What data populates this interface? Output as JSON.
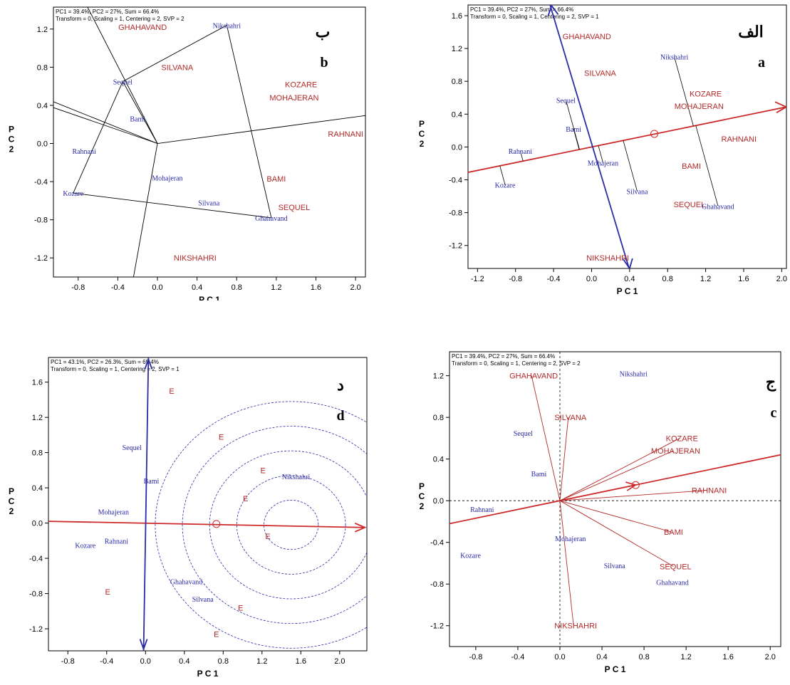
{
  "chart_data": [
    {
      "type": "scatter",
      "panel_label_ar": "ب",
      "panel_label_en": "b",
      "header_line1": "PC1 = 39.4%, PC2 = 27%, Sum = 66.4%",
      "header_line2": "Transform = 0, Scaling = 1, Centering = 2, SVP = 2",
      "xlabel": "P C 1",
      "ylabel": [
        "P",
        "C",
        "2"
      ],
      "xlim": [
        -1.05,
        2.1
      ],
      "ylim": [
        -1.4,
        1.43
      ],
      "xticks": [
        -0.8,
        -0.4,
        0.0,
        0.4,
        0.8,
        1.2,
        1.6,
        2.0
      ],
      "yticks": [
        -1.2,
        -0.8,
        -0.4,
        0.0,
        0.4,
        0.8,
        1.2
      ],
      "environments": [
        {
          "label": "GHAHAVAND",
          "x": -0.15,
          "y": 1.22
        },
        {
          "label": "SILVANA",
          "x": 0.2,
          "y": 0.8
        },
        {
          "label": "KOZARE",
          "x": 1.45,
          "y": 0.62
        },
        {
          "label": "MOHAJERAN",
          "x": 1.38,
          "y": 0.48
        },
        {
          "label": "RAHNANI",
          "x": 1.9,
          "y": 0.1
        },
        {
          "label": "BAMI",
          "x": 1.2,
          "y": -0.37
        },
        {
          "label": "SEQUEL",
          "x": 1.38,
          "y": -0.67
        },
        {
          "label": "NIKSHAHRI",
          "x": 0.38,
          "y": -1.2
        }
      ],
      "genotypes": [
        {
          "label": "Nikshahri",
          "x": 0.7,
          "y": 1.24
        },
        {
          "label": "Sequel",
          "x": -0.35,
          "y": 0.65
        },
        {
          "label": "Bami",
          "x": -0.2,
          "y": 0.26
        },
        {
          "label": "Rahnani",
          "x": -0.74,
          "y": -0.08
        },
        {
          "label": "Mohajeran",
          "x": 0.1,
          "y": -0.36
        },
        {
          "label": "Kozare",
          "x": -0.85,
          "y": -0.52
        },
        {
          "label": "Silvana",
          "x": 0.52,
          "y": -0.62
        },
        {
          "label": "Ghahavand",
          "x": 1.15,
          "y": -0.78
        }
      ]
    },
    {
      "type": "scatter",
      "panel_label_ar": "الف",
      "panel_label_en": "a",
      "header_line1": "PC1 = 39.4%, PC2 = 27%, Sum = 66.4%",
      "header_line2": "Transform = 0, Scaling = 1, Centering = 2, SVP = 1",
      "xlabel": "P C 1",
      "ylabel": [
        "P",
        "C",
        "2"
      ],
      "xlim": [
        -1.3,
        2.05
      ],
      "ylim": [
        -1.48,
        1.73
      ],
      "xticks": [
        -1.2,
        -0.8,
        -0.4,
        0.0,
        0.4,
        0.8,
        1.2,
        1.6,
        2.0
      ],
      "yticks": [
        -1.2,
        -0.8,
        -0.4,
        0.0,
        0.4,
        0.8,
        1.2,
        1.6
      ],
      "environments": [
        {
          "label": "GHAHAVAND",
          "x": -0.05,
          "y": 1.35
        },
        {
          "label": "SILVANA",
          "x": 0.09,
          "y": 0.9
        },
        {
          "label": "KOZARE",
          "x": 1.2,
          "y": 0.65
        },
        {
          "label": "MOHAJERAN",
          "x": 1.13,
          "y": 0.5
        },
        {
          "label": "RAHNANI",
          "x": 1.55,
          "y": 0.1
        },
        {
          "label": "BAMI",
          "x": 1.05,
          "y": -0.23
        },
        {
          "label": "SEQUEL",
          "x": 1.03,
          "y": -0.7
        },
        {
          "label": "NIKSHAHRI",
          "x": 0.17,
          "y": -1.35
        }
      ],
      "genotypes": [
        {
          "label": "Nikshahri",
          "x": 0.87,
          "y": 1.1
        },
        {
          "label": "Sequel",
          "x": -0.27,
          "y": 0.57
        },
        {
          "label": "Bami",
          "x": -0.19,
          "y": 0.22
        },
        {
          "label": "Rahnani",
          "x": -0.75,
          "y": -0.05
        },
        {
          "label": "Mohajeran",
          "x": 0.12,
          "y": -0.19
        },
        {
          "label": "Kozare",
          "x": -0.91,
          "y": -0.46
        },
        {
          "label": "Silvana",
          "x": 0.48,
          "y": -0.54
        },
        {
          "label": "Ghahavand",
          "x": 1.33,
          "y": -0.72
        }
      ]
    },
    {
      "type": "scatter",
      "panel_label_ar": "د",
      "panel_label_en": "d",
      "header_line1": "PC1 = 43.1%, PC2 = 26.3%, Sum = 69.4%",
      "header_line2": "Transform = 0, Scaling = 1, Centering = 2, SVP = 1",
      "xlabel": "P C 1",
      "ylabel": [
        "P",
        "C",
        "2"
      ],
      "xlim": [
        -1.0,
        2.28
      ],
      "ylim": [
        -1.45,
        1.88
      ],
      "xticks": [
        -0.8,
        -0.4,
        0.0,
        0.4,
        0.8,
        1.2,
        1.6,
        2.0
      ],
      "yticks": [
        -1.2,
        -0.8,
        -0.4,
        0.0,
        0.4,
        0.8,
        1.2,
        1.6
      ],
      "environments": [
        {
          "label": "E",
          "x": 0.27,
          "y": 1.5
        },
        {
          "label": "E",
          "x": 0.78,
          "y": 0.98
        },
        {
          "label": "E",
          "x": 1.21,
          "y": 0.6
        },
        {
          "label": "E",
          "x": 1.03,
          "y": 0.28
        },
        {
          "label": "E",
          "x": 1.26,
          "y": -0.15
        },
        {
          "label": "E",
          "x": -0.39,
          "y": -0.78
        },
        {
          "label": "E",
          "x": 0.98,
          "y": -0.96
        },
        {
          "label": "E",
          "x": 0.73,
          "y": -1.26
        }
      ],
      "genotypes": [
        {
          "label": "Nikshahri",
          "x": 1.55,
          "y": 0.53
        },
        {
          "label": "Sequel",
          "x": -0.14,
          "y": 0.86
        },
        {
          "label": "Bami",
          "x": 0.06,
          "y": 0.48
        },
        {
          "label": "Mohajeran",
          "x": -0.33,
          "y": 0.13
        },
        {
          "label": "Rahnani",
          "x": -0.3,
          "y": -0.2
        },
        {
          "label": "Kozare",
          "x": -0.62,
          "y": -0.25
        },
        {
          "label": "Ghahavand",
          "x": 0.42,
          "y": -0.66
        },
        {
          "label": "Silvana",
          "x": 0.59,
          "y": -0.86
        }
      ]
    },
    {
      "type": "scatter",
      "panel_label_ar": "ج",
      "panel_label_en": "c",
      "header_line1": "PC1 = 39.4%, PC2 = 27%, Sum = 66.4%",
      "header_line2": "Transform = 0, Scaling = 1, Centering = 2, SVP = 2",
      "xlabel": "P C 1",
      "ylabel": [
        "P",
        "C",
        "2"
      ],
      "xlim": [
        -1.05,
        2.1
      ],
      "ylim": [
        -1.4,
        1.43
      ],
      "xticks": [
        -0.8,
        -0.4,
        0.0,
        0.4,
        0.8,
        1.2,
        1.6,
        2.0
      ],
      "yticks": [
        -1.2,
        -0.8,
        -0.4,
        0.0,
        0.4,
        0.8,
        1.2
      ],
      "environments": [
        {
          "label": "GHAHAVAND",
          "x": -0.25,
          "y": 1.2
        },
        {
          "label": "SILVANA",
          "x": 0.1,
          "y": 0.8
        },
        {
          "label": "KOZARE",
          "x": 1.16,
          "y": 0.6
        },
        {
          "label": "MOHAJERAN",
          "x": 1.1,
          "y": 0.48
        },
        {
          "label": "RAHNANI",
          "x": 1.42,
          "y": 0.1
        },
        {
          "label": "BAMI",
          "x": 1.08,
          "y": -0.3
        },
        {
          "label": "SEQUEL",
          "x": 1.1,
          "y": -0.63
        },
        {
          "label": "NIKSHAHRI",
          "x": 0.15,
          "y": -1.2
        }
      ],
      "genotypes": [
        {
          "label": "Nikshahri",
          "x": 0.7,
          "y": 1.22
        },
        {
          "label": "Sequel",
          "x": -0.35,
          "y": 0.65
        },
        {
          "label": "Bami",
          "x": -0.2,
          "y": 0.26
        },
        {
          "label": "Rahnani",
          "x": -0.74,
          "y": -0.08
        },
        {
          "label": "Mohajeran",
          "x": 0.1,
          "y": -0.36
        },
        {
          "label": "Kozare",
          "x": -0.85,
          "y": -0.52
        },
        {
          "label": "Silvana",
          "x": 0.52,
          "y": -0.62
        },
        {
          "label": "Ghahavand",
          "x": 1.07,
          "y": -0.78
        }
      ]
    }
  ]
}
